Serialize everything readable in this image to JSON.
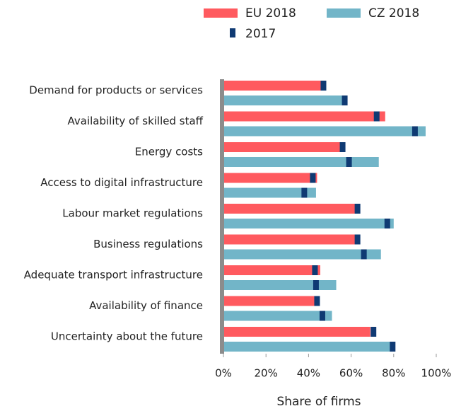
{
  "chart_data": {
    "type": "bar",
    "orientation": "horizontal",
    "x_label": "Share of firms",
    "categories": [
      "Demand for products or services",
      "Availability of skilled staff",
      "Energy costs",
      "Access to digital infrastructure",
      "Labour market regulations",
      "Business regulations",
      "Adequate transport infrastructure",
      "Availability of finance",
      "Uncertainty about the future"
    ],
    "series": [
      {
        "name": "EU 2018",
        "color": "#ff5a5f",
        "values": [
          46,
          76,
          57,
          44,
          62,
          62,
          45.5,
          45,
          69
        ],
        "values_2017": [
          47,
          72,
          56,
          42,
          63,
          63,
          43,
          44,
          70.5
        ]
      },
      {
        "name": "CZ 2018",
        "color": "#72b5c8",
        "values": [
          58,
          95,
          73,
          43.5,
          80,
          74,
          53,
          51,
          80
        ],
        "values_2017": [
          57,
          90,
          59,
          38,
          77,
          66,
          43.5,
          46.5,
          79.5
        ]
      }
    ],
    "marker_name": "2017",
    "marker_color": "#0f3a73",
    "xlim": [
      0,
      100
    ],
    "xticks": [
      {
        "value": 0,
        "label": "0%"
      },
      {
        "value": 20,
        "label": "20%"
      },
      {
        "value": 40,
        "label": "40%"
      },
      {
        "value": 60,
        "label": "60%"
      },
      {
        "value": 80,
        "label": "80%"
      },
      {
        "value": 100,
        "label": "100%"
      }
    ]
  }
}
